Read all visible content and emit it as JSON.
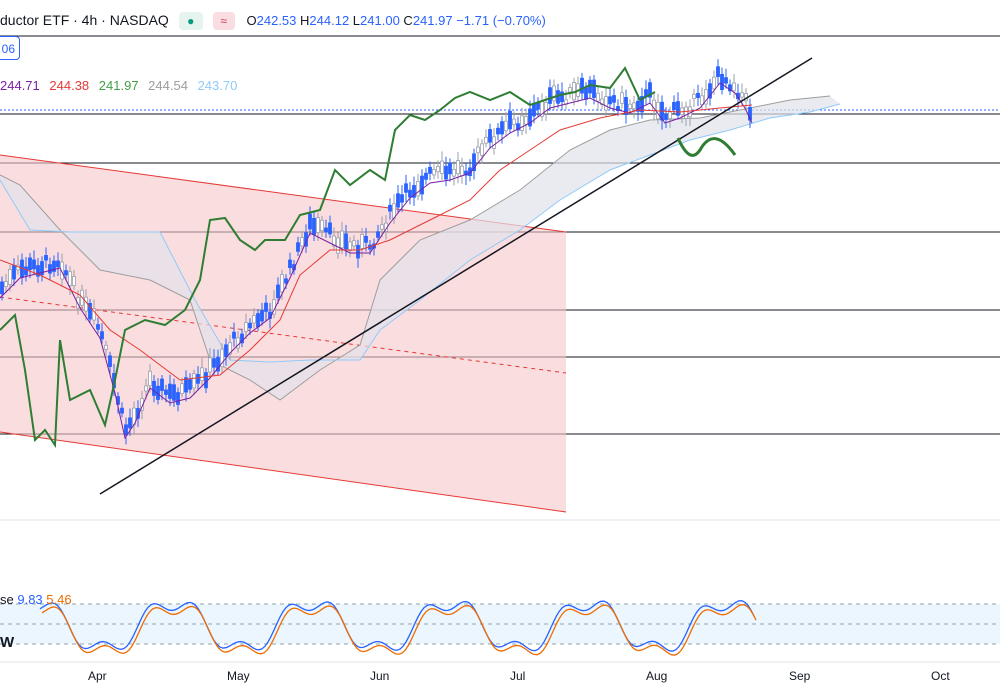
{
  "header": {
    "symbol": "ductor ETF · 4h · NASDAQ",
    "live_icon": "●",
    "wave_icon": "≈",
    "o_label": "O",
    "o_value": "242.53",
    "h_label": "H",
    "h_value": "244.12",
    "l_label": "L",
    "l_value": "241.00",
    "c_label": "C",
    "c_value": "241.97",
    "change": "−1.71 (−0.70%)"
  },
  "side_box_value": "06",
  "ichimoku": {
    "values": [
      "244.71",
      "244.38",
      "241.97",
      "244.54",
      "243.70"
    ],
    "colors": [
      "#7b1fa2",
      "#e53935",
      "#43a047",
      "#9e9e9e",
      "#90caf9"
    ]
  },
  "stoch": {
    "label": "se",
    "k": "9.83",
    "d": "5.46",
    "suffix": "W"
  },
  "x_axis": [
    "Apr",
    "May",
    "Jun",
    "Jul",
    "Aug",
    "Sep",
    "Oct"
  ],
  "colors": {
    "up": "#2962ff",
    "down": "#2962ff",
    "tenkan": "#7b1fa2",
    "kijun": "#e53935",
    "chikou": "#2e7d32",
    "channel": "#f7c6c9",
    "stochK": "#2962ff",
    "stochD": "#ef6c00"
  },
  "chart_data": {
    "type": "candlestick",
    "x_categories": [
      "Apr",
      "May",
      "Jun",
      "Jul",
      "Aug",
      "Sep",
      "Oct"
    ],
    "last_price": 241.97,
    "ohlc_last": {
      "open": 242.53,
      "high": 244.12,
      "low": 241.0,
      "close": 241.97
    },
    "ichimoku": {
      "tenkan": 244.71,
      "kijun": 244.38,
      "chikou": 241.97,
      "span_a": 244.54,
      "span_b": 243.7
    },
    "stochastic": {
      "k": 9.83,
      "d": 5.46
    }
  }
}
